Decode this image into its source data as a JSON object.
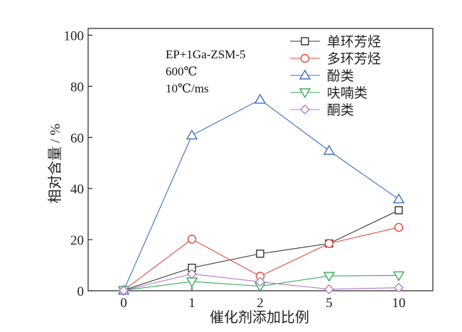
{
  "chart_data": {
    "type": "line",
    "categories": [
      "0",
      "1",
      "2",
      "5",
      "10"
    ],
    "xlabel": "催化剂添加比例",
    "ylabel": "相对含量 / %",
    "ylim": [
      0,
      100
    ],
    "yticks": [
      0,
      20,
      40,
      60,
      80,
      100
    ],
    "grid": false,
    "legend_position": "top-right",
    "annotations": [
      "EP+1Ga-ZSM-5",
      "600℃",
      "10℃/ms"
    ],
    "series": [
      {
        "name": "单环芳烃",
        "marker": "square",
        "color": "#333333",
        "values": [
          0.2,
          9,
          14.5,
          18.5,
          31.5
        ]
      },
      {
        "name": "多环芳烃",
        "marker": "circle",
        "color": "#e8473f",
        "values": [
          0.2,
          20.2,
          5.7,
          18.5,
          24.8
        ]
      },
      {
        "name": "酚类",
        "marker": "triangle-up",
        "color": "#3d6fc0",
        "values": [
          0.1,
          60.8,
          74.8,
          54.8,
          35.8
        ]
      },
      {
        "name": "呋喃类",
        "marker": "triangle-down",
        "color": "#3aaa5c",
        "values": [
          0.2,
          3.6,
          1.8,
          5.8,
          6.0
        ]
      },
      {
        "name": "酮类",
        "marker": "diamond",
        "color": "#b07cc6",
        "values": [
          0.1,
          6.6,
          3.5,
          0.6,
          1.2
        ]
      }
    ]
  }
}
